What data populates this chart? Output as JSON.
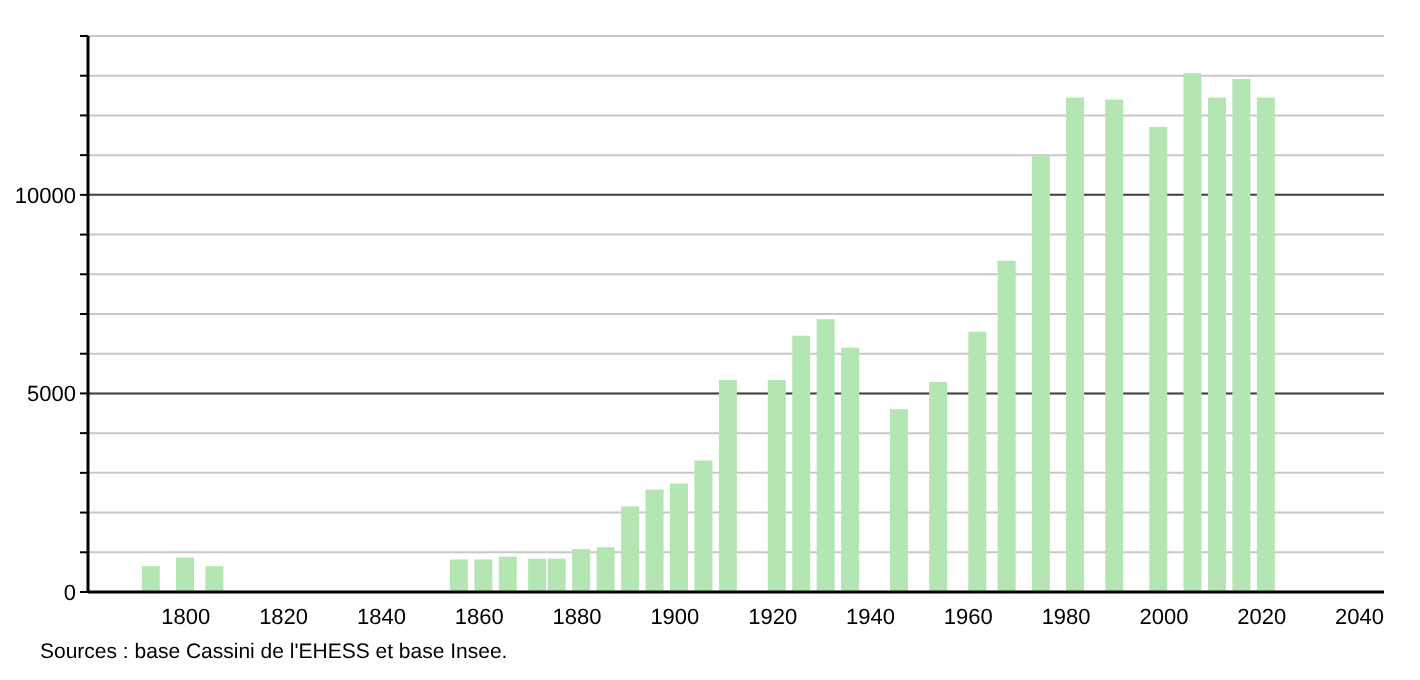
{
  "chart_data": {
    "type": "bar",
    "x": [
      1793,
      1800,
      1806,
      1856,
      1861,
      1866,
      1872,
      1876,
      1881,
      1886,
      1891,
      1896,
      1901,
      1906,
      1911,
      1921,
      1926,
      1931,
      1936,
      1946,
      1954,
      1962,
      1968,
      1975,
      1982,
      1990,
      1999,
      2006,
      2011,
      2016,
      2021
    ],
    "values": [
      650,
      870,
      650,
      820,
      820,
      890,
      840,
      840,
      1080,
      1130,
      2150,
      2580,
      2730,
      3310,
      5340,
      5340,
      6450,
      6870,
      6150,
      4600,
      5290,
      6550,
      8340,
      10970,
      12450,
      12400,
      11710,
      13060,
      12450,
      12920,
      12450
    ],
    "color": "#b3e6b3",
    "xlim": [
      1780,
      2045
    ],
    "xticks": [
      1800,
      1820,
      1840,
      1860,
      1880,
      1900,
      1920,
      1940,
      1960,
      1980,
      2000,
      2020,
      2040
    ],
    "ylim": [
      0,
      14000
    ],
    "yticks": [
      0,
      {
        "value": 1000,
        "label": null
      },
      {
        "value": 2000,
        "label": null
      },
      {
        "value": 3000,
        "label": null
      },
      {
        "value": 4000,
        "label": null
      },
      5000,
      {
        "value": 6000,
        "label": null
      },
      {
        "value": 7000,
        "label": null
      },
      {
        "value": 8000,
        "label": null
      },
      {
        "value": 9000,
        "label": null
      },
      10000,
      {
        "value": 11000,
        "label": null
      },
      {
        "value": 12000,
        "label": null
      },
      {
        "value": 13000,
        "label": null
      },
      {
        "value": 14000,
        "label": null
      }
    ],
    "grid": "y",
    "annotations": [
      "Sources : base Cassini de l'EHESS et base Insee."
    ]
  }
}
